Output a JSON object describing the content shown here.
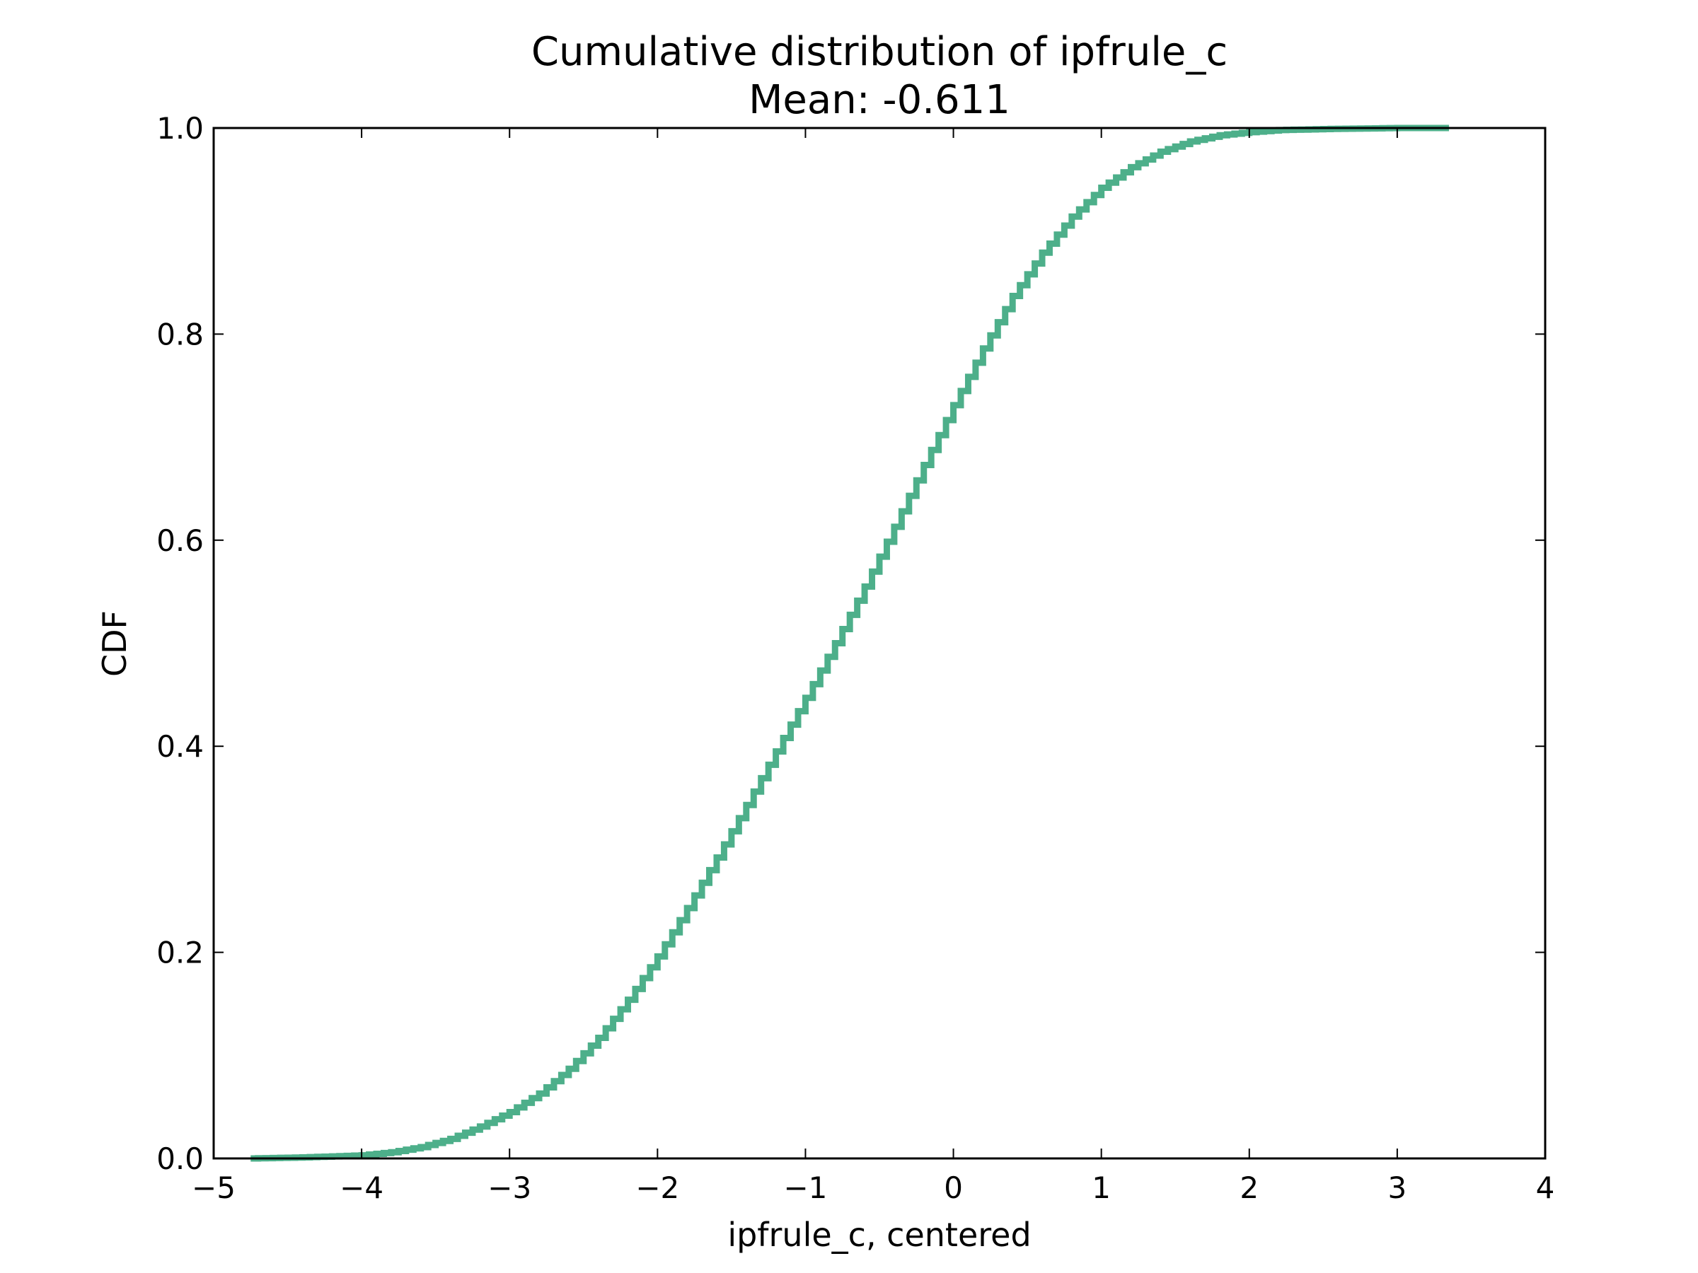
{
  "chart_data": {
    "type": "line",
    "title": "Cumulative distribution of ipfrule_c",
    "subtitle": "Mean: -0.611",
    "xlabel": "ipfrule_c, centered",
    "ylabel": "CDF",
    "xlim": [
      -5,
      4
    ],
    "ylim": [
      0.0,
      1.0
    ],
    "x_ticks": [
      -5,
      -4,
      -3,
      -2,
      -1,
      0,
      1,
      2,
      3,
      4
    ],
    "x_tick_labels": [
      "−5",
      "−4",
      "−3",
      "−2",
      "−1",
      "0",
      "1",
      "2",
      "3",
      "4"
    ],
    "y_ticks": [
      0.0,
      0.2,
      0.4,
      0.6,
      0.8,
      1.0
    ],
    "y_tick_labels": [
      "0.0",
      "0.2",
      "0.4",
      "0.6",
      "0.8",
      "1.0"
    ],
    "grid": false,
    "legend": "none",
    "line_color": "#4daf8a",
    "series": [
      {
        "x": [
          -4.75,
          -4.4,
          -4.0,
          -3.8,
          -3.6,
          -3.4,
          -3.2,
          -3.0,
          -2.8,
          -2.6,
          -2.4,
          -2.2,
          -2.0,
          -1.8,
          -1.6,
          -1.4,
          -1.2,
          -1.0,
          -0.8,
          -0.6,
          -0.4,
          -0.2,
          0.0,
          0.2,
          0.4,
          0.6,
          0.8,
          1.0,
          1.2,
          1.4,
          1.6,
          1.8,
          2.0,
          2.2,
          2.5,
          3.0,
          3.35
        ],
        "y": [
          0.0,
          0.001,
          0.003,
          0.006,
          0.011,
          0.019,
          0.031,
          0.045,
          0.063,
          0.087,
          0.117,
          0.154,
          0.196,
          0.243,
          0.292,
          0.343,
          0.395,
          0.447,
          0.5,
          0.555,
          0.613,
          0.673,
          0.731,
          0.786,
          0.837,
          0.879,
          0.914,
          0.942,
          0.962,
          0.977,
          0.987,
          0.993,
          0.996,
          0.998,
          0.999,
          1.0,
          1.0
        ]
      }
    ]
  }
}
